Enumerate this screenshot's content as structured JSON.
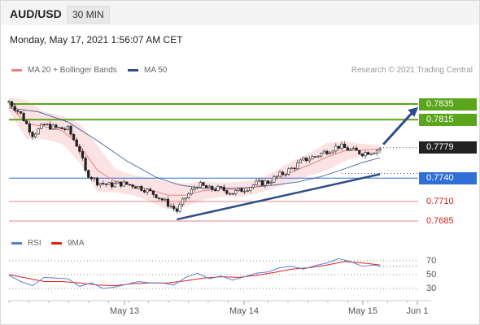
{
  "header": {
    "symbol": "AUD/USD",
    "timeframe": "30 MIN"
  },
  "timestamp": "Monday, May 17, 2021 1:56:07 AM CET",
  "legend": {
    "ma20_label": "MA 20 + Bollinger Bands",
    "ma20_color": "#f08080",
    "ma50_label": "MA 50",
    "ma50_color": "#2e4d8c"
  },
  "copyright": "Research © 2021 Trading Central",
  "rsi_legend": {
    "rsi_label": "RSI",
    "rsi_color": "#5b7fd1",
    "ma_label": "9MA",
    "ma_color": "#e02020"
  },
  "price_levels": [
    {
      "value": "0.7835",
      "kind": "resistance",
      "color": "#5aa51c",
      "style": "filled"
    },
    {
      "value": "0.7815",
      "kind": "resistance",
      "color": "#5aa51c",
      "style": "filled"
    },
    {
      "value": "0.7779",
      "kind": "current",
      "color": "#222222",
      "style": "filled"
    },
    {
      "value": "0.7740",
      "kind": "pivot",
      "color": "#2f6fd6",
      "style": "filled"
    },
    {
      "value": "0.7710",
      "kind": "support",
      "color": "#d62020",
      "style": "text"
    },
    {
      "value": "0.7685",
      "kind": "support",
      "color": "#d62020",
      "style": "text"
    }
  ],
  "x_axis_labels": [
    "May 13",
    "May 14",
    "May 15",
    "Jun 1"
  ],
  "rsi_axis_labels": [
    "70",
    "50",
    "30"
  ],
  "chart_data": {
    "type": "candlestick",
    "instrument": "AUD/USD",
    "interval": "30 MIN",
    "ylim": [
      0.7672,
      0.7852
    ],
    "key_levels": [
      0.7835,
      0.7815,
      0.7779,
      0.774,
      0.771,
      0.7685
    ],
    "price_path": [
      [
        0,
        0.7838
      ],
      [
        4,
        0.7822
      ],
      [
        8,
        0.7796
      ],
      [
        12,
        0.7808
      ],
      [
        16,
        0.7804
      ],
      [
        20,
        0.7803
      ],
      [
        24,
        0.7776
      ],
      [
        26,
        0.7748
      ],
      [
        30,
        0.7735
      ],
      [
        34,
        0.7731
      ],
      [
        38,
        0.7733
      ],
      [
        42,
        0.7731
      ],
      [
        46,
        0.7726
      ],
      [
        50,
        0.7718
      ],
      [
        54,
        0.7707
      ],
      [
        57,
        0.7698
      ],
      [
        60,
        0.7715
      ],
      [
        64,
        0.7732
      ],
      [
        68,
        0.7726
      ],
      [
        72,
        0.7726
      ],
      [
        76,
        0.7721
      ],
      [
        80,
        0.7726
      ],
      [
        84,
        0.7733
      ],
      [
        88,
        0.7735
      ],
      [
        92,
        0.7744
      ],
      [
        96,
        0.7752
      ],
      [
        100,
        0.7763
      ],
      [
        104,
        0.7768
      ],
      [
        108,
        0.7775
      ],
      [
        112,
        0.7781
      ],
      [
        116,
        0.7776
      ],
      [
        120,
        0.7772
      ],
      [
        124,
        0.7775
      ],
      [
        126,
        0.7778
      ]
    ],
    "ma20": [
      [
        0,
        0.7834
      ],
      [
        6,
        0.781
      ],
      [
        12,
        0.7806
      ],
      [
        18,
        0.7801
      ],
      [
        24,
        0.7782
      ],
      [
        30,
        0.775
      ],
      [
        36,
        0.7736
      ],
      [
        42,
        0.7731
      ],
      [
        48,
        0.7725
      ],
      [
        54,
        0.7718
      ],
      [
        60,
        0.7718
      ],
      [
        66,
        0.7724
      ],
      [
        72,
        0.7726
      ],
      [
        78,
        0.7725
      ],
      [
        84,
        0.7729
      ],
      [
        90,
        0.7737
      ],
      [
        96,
        0.7748
      ],
      [
        102,
        0.7757
      ],
      [
        108,
        0.7767
      ],
      [
        114,
        0.7775
      ],
      [
        120,
        0.7776
      ],
      [
        126,
        0.7777
      ]
    ],
    "bollinger_upper": [
      [
        0,
        0.7844
      ],
      [
        6,
        0.784
      ],
      [
        12,
        0.7825
      ],
      [
        18,
        0.782
      ],
      [
        24,
        0.781
      ],
      [
        30,
        0.7782
      ],
      [
        36,
        0.7752
      ],
      [
        42,
        0.7744
      ],
      [
        48,
        0.774
      ],
      [
        54,
        0.7735
      ],
      [
        60,
        0.7733
      ],
      [
        66,
        0.7736
      ],
      [
        72,
        0.7734
      ],
      [
        78,
        0.7735
      ],
      [
        84,
        0.7738
      ],
      [
        90,
        0.7748
      ],
      [
        96,
        0.7762
      ],
      [
        102,
        0.7772
      ],
      [
        108,
        0.7785
      ],
      [
        114,
        0.7787
      ],
      [
        120,
        0.7784
      ],
      [
        126,
        0.7782
      ]
    ],
    "bollinger_lower": [
      [
        0,
        0.7826
      ],
      [
        6,
        0.779
      ],
      [
        12,
        0.779
      ],
      [
        18,
        0.7784
      ],
      [
        24,
        0.776
      ],
      [
        30,
        0.7722
      ],
      [
        36,
        0.7722
      ],
      [
        42,
        0.7718
      ],
      [
        48,
        0.771
      ],
      [
        54,
        0.77
      ],
      [
        60,
        0.7704
      ],
      [
        66,
        0.7712
      ],
      [
        72,
        0.7716
      ],
      [
        78,
        0.7716
      ],
      [
        84,
        0.772
      ],
      [
        90,
        0.7727
      ],
      [
        96,
        0.7735
      ],
      [
        102,
        0.7743
      ],
      [
        108,
        0.775
      ],
      [
        114,
        0.7762
      ],
      [
        120,
        0.7768
      ],
      [
        126,
        0.7772
      ]
    ],
    "ma50": [
      [
        0,
        0.783
      ],
      [
        10,
        0.7825
      ],
      [
        20,
        0.7812
      ],
      [
        30,
        0.7788
      ],
      [
        40,
        0.7762
      ],
      [
        50,
        0.7741
      ],
      [
        58,
        0.7731
      ],
      [
        66,
        0.7727
      ],
      [
        74,
        0.7727
      ],
      [
        82,
        0.7728
      ],
      [
        90,
        0.7731
      ],
      [
        98,
        0.7735
      ],
      [
        106,
        0.7742
      ],
      [
        114,
        0.7752
      ],
      [
        120,
        0.776
      ],
      [
        126,
        0.7766
      ]
    ],
    "trendlines": [
      {
        "name": "support trendline",
        "from": [
          57,
          0.7687
        ],
        "to": [
          126,
          0.7745
        ]
      },
      {
        "name": "projection arrow",
        "from": [
          126,
          0.7779
        ],
        "to": [
          139,
          0.7835
        ]
      }
    ],
    "rsi": {
      "ylim": [
        20,
        80
      ],
      "levels": [
        70,
        50,
        30
      ],
      "rsi": [
        [
          0,
          49
        ],
        [
          4,
          40
        ],
        [
          8,
          34
        ],
        [
          12,
          46
        ],
        [
          16,
          45
        ],
        [
          20,
          44
        ],
        [
          24,
          33
        ],
        [
          28,
          38
        ],
        [
          32,
          30
        ],
        [
          36,
          32
        ],
        [
          40,
          36
        ],
        [
          44,
          40
        ],
        [
          48,
          38
        ],
        [
          52,
          38
        ],
        [
          56,
          35
        ],
        [
          60,
          46
        ],
        [
          64,
          52
        ],
        [
          68,
          44
        ],
        [
          72,
          48
        ],
        [
          76,
          42
        ],
        [
          80,
          47
        ],
        [
          84,
          52
        ],
        [
          88,
          54
        ],
        [
          92,
          60
        ],
        [
          96,
          62
        ],
        [
          100,
          58
        ],
        [
          104,
          63
        ],
        [
          108,
          67
        ],
        [
          112,
          73
        ],
        [
          116,
          69
        ],
        [
          120,
          62
        ],
        [
          124,
          64
        ],
        [
          126,
          62
        ]
      ],
      "ma9": [
        [
          0,
          50
        ],
        [
          6,
          45
        ],
        [
          12,
          40
        ],
        [
          18,
          40
        ],
        [
          24,
          38
        ],
        [
          30,
          35
        ],
        [
          36,
          34
        ],
        [
          42,
          37
        ],
        [
          48,
          38
        ],
        [
          54,
          38
        ],
        [
          60,
          41
        ],
        [
          66,
          45
        ],
        [
          72,
          47
        ],
        [
          78,
          46
        ],
        [
          84,
          49
        ],
        [
          90,
          53
        ],
        [
          96,
          58
        ],
        [
          102,
          60
        ],
        [
          108,
          64
        ],
        [
          114,
          69
        ],
        [
          120,
          67
        ],
        [
          126,
          64
        ]
      ]
    }
  }
}
